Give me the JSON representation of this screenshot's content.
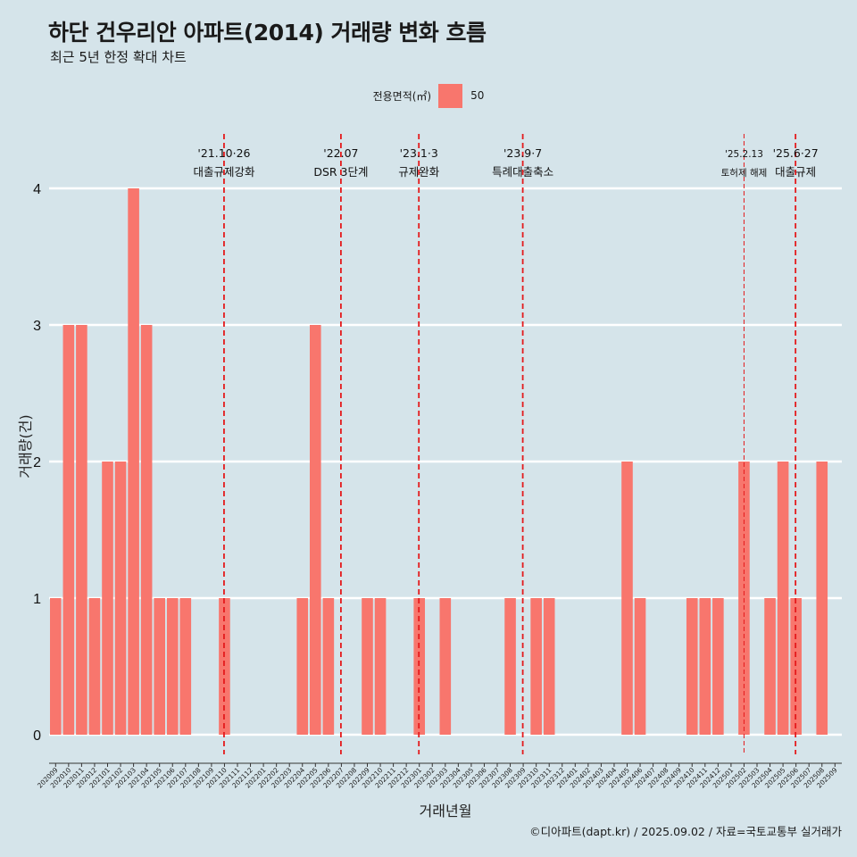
{
  "header": {
    "title": "하단 건우리안 아파트(2014) 거래량 변화 흐름",
    "subtitle": "최근 5년 한정 확대 차트"
  },
  "legend": {
    "title": "전용면적(㎡)",
    "label": "50"
  },
  "caption": "©디아파트(dapt.kr) / 2025.09.02 / 자료=국토교통부 실거래가",
  "colors": {
    "background": "#d5e4ea",
    "bar": "#f8766d",
    "gridline": "#ffffff",
    "event_line": "#e41a1c"
  },
  "chart_data": {
    "type": "bar",
    "xlabel": "거래년월",
    "ylabel": "거래량(건)",
    "ylim": [
      0,
      4
    ],
    "y_ticks": [
      0,
      1,
      2,
      3,
      4
    ],
    "grid": true,
    "legend_position": "top",
    "categories": [
      "202009",
      "202010",
      "202011",
      "202012",
      "202101",
      "202102",
      "202103",
      "202104",
      "202105",
      "202106",
      "202107",
      "202108",
      "202109",
      "202110",
      "202111",
      "202112",
      "202201",
      "202202",
      "202203",
      "202204",
      "202205",
      "202206",
      "202207",
      "202208",
      "202209",
      "202210",
      "202211",
      "202212",
      "202301",
      "202302",
      "202303",
      "202304",
      "202305",
      "202306",
      "202307",
      "202308",
      "202309",
      "202310",
      "202311",
      "202312",
      "202401",
      "202402",
      "202403",
      "202404",
      "202405",
      "202406",
      "202407",
      "202408",
      "202409",
      "202410",
      "202411",
      "202412",
      "202501",
      "202502",
      "202503",
      "202504",
      "202505",
      "202506",
      "202507",
      "202508",
      "202509"
    ],
    "series": [
      {
        "name": "50",
        "values": [
          1,
          3,
          3,
          1,
          2,
          2,
          4,
          3,
          1,
          1,
          1,
          0,
          0,
          1,
          0,
          0,
          0,
          0,
          0,
          1,
          3,
          1,
          0,
          0,
          1,
          1,
          0,
          0,
          1,
          0,
          1,
          0,
          0,
          0,
          0,
          1,
          0,
          1,
          1,
          0,
          0,
          0,
          0,
          0,
          2,
          1,
          0,
          0,
          0,
          1,
          1,
          1,
          0,
          2,
          0,
          1,
          2,
          1,
          0,
          2,
          0
        ]
      }
    ],
    "events": [
      {
        "x": "202110",
        "date": "'21.10·26",
        "label": "대출규제강화",
        "style": "dashed"
      },
      {
        "x": "202207",
        "date": "'22.07",
        "label": "DSR 3단계",
        "style": "dashed"
      },
      {
        "x": "202301",
        "date": "'23.1·3",
        "label": "규제완화",
        "style": "dashed"
      },
      {
        "x": "202309",
        "date": "'23.9·7",
        "label": "특례대출축소",
        "style": "dashed"
      },
      {
        "x": "202502",
        "date": "'25.2.13",
        "label": "토허제 해제",
        "style": "thin"
      },
      {
        "x": "202506",
        "date": "'25.6·27",
        "label": "대출규제",
        "style": "dashed"
      }
    ]
  }
}
